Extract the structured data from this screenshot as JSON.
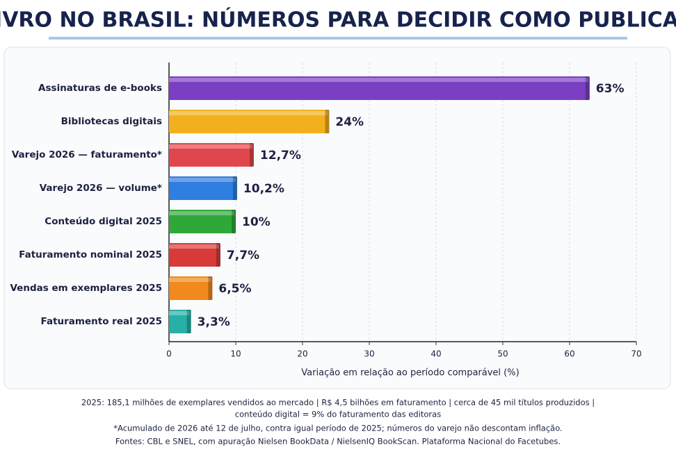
{
  "chart_data": {
    "type": "bar",
    "orientation": "horizontal",
    "title": "LIVRO NO BRASIL: NÚMEROS PARA DECIDIR COMO PUBLICAR",
    "x_label": "Variação em relação ao período comparável (%)",
    "categories": [
      "Assinaturas de e-books",
      "Bibliotecas digitais",
      "Varejo 2026 — faturamento*",
      "Varejo 2026 — volume*",
      "Conteúdo digital 2025",
      "Faturamento nominal 2025",
      "Vendas em exemplares 2025",
      "Faturamento real 2025"
    ],
    "values": [
      63,
      24,
      12.7,
      10.2,
      10,
      7.7,
      6.5,
      3.3
    ],
    "value_labels": [
      "63%",
      "24%",
      "12,7%",
      "10,2%",
      "10%",
      "7,7%",
      "6,5%",
      "3,3%"
    ],
    "colors": [
      "#7b3fc4",
      "#f2b01e",
      "#e0474c",
      "#2f7fe0",
      "#2fa83a",
      "#d83a3a",
      "#f08a1c",
      "#26b0a8"
    ],
    "xlim": [
      0,
      70
    ],
    "xticks": [
      0,
      10,
      20,
      30,
      40,
      50,
      60,
      70
    ],
    "grid": true
  },
  "footer": {
    "lines": [
      "2025: 185,1 milhões de exemplares vendidos ao mercado | R$ 4,5 bilhões em faturamento | cerca de 45 mil títulos produzidos |",
      "conteúdo digital = 9% do faturamento das editoras",
      "*Acumulado de 2026 até 12 de julho, contra igual período de 2025; números do varejo não descontam inflação.",
      "Fontes: CBL e SNEL, com apuração Nielsen BookData / NielsenIQ BookScan. Plataforma Nacional do Facetubes."
    ]
  }
}
